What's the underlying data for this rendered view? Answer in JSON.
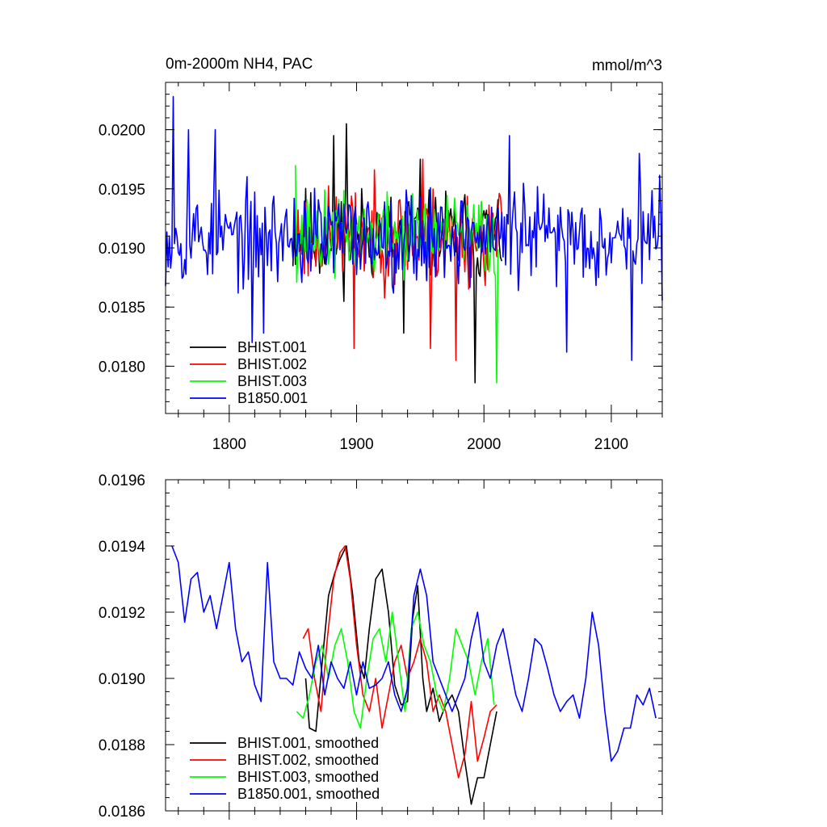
{
  "chart_data": [
    {
      "type": "line",
      "title_left": "0m-2000m NH4, PAC",
      "title_right": "mmol/m^3",
      "xlim": [
        1750,
        2140
      ],
      "ylim": [
        0.0176,
        0.0204
      ],
      "x_ticks": [
        1800,
        1900,
        2000,
        2100
      ],
      "x_tick_labels": [
        "1800",
        "1900",
        "2000",
        "2100"
      ],
      "y_ticks": [
        0.018,
        0.0185,
        0.019,
        0.0195,
        0.02
      ],
      "y_tick_labels": [
        "0.0180",
        "0.0185",
        "0.0190",
        "0.0195",
        "0.0200"
      ],
      "legend_position": "bottom-left",
      "series": [
        {
          "name": "BHIST.001",
          "color": "#000000",
          "x_start": 1850,
          "x_end": 2014,
          "mean": 0.0191,
          "amp": 0.00035,
          "seed": 11,
          "peaks": [
            [
              1882,
              0.01995
            ],
            [
              1892,
              0.02005
            ],
            [
              1950,
              0.01975
            ],
            [
              1993,
              0.01786
            ],
            [
              1937,
              0.01828
            ]
          ]
        },
        {
          "name": "BHIST.002",
          "color": "#ff0000",
          "x_start": 1853,
          "x_end": 2014,
          "mean": 0.0191,
          "amp": 0.00035,
          "seed": 23,
          "peaks": [
            [
              1952,
              0.01975
            ],
            [
              1898,
              0.01815
            ],
            [
              1978,
              0.01805
            ],
            [
              1958,
              0.01815
            ]
          ]
        },
        {
          "name": "BHIST.003",
          "color": "#00ff00",
          "x_start": 1852,
          "x_end": 2011,
          "mean": 0.0191,
          "amp": 0.0003,
          "seed": 37,
          "peaks": [
            [
              2010,
              0.01786
            ],
            [
              1852,
              0.0197
            ]
          ]
        },
        {
          "name": "B1850.001",
          "color": "#0000ff",
          "x_start": 1750,
          "x_end": 2140,
          "mean": 0.0191,
          "amp": 0.00035,
          "seed": 53,
          "peaks": [
            [
              1756,
              0.02028
            ],
            [
              1768,
              0.02
            ],
            [
              1789,
              0.02
            ],
            [
              1818,
              0.0182
            ],
            [
              1827,
              0.01828
            ],
            [
              2020,
              0.01995
            ],
            [
              2065,
              0.01812
            ],
            [
              2122,
              0.0198
            ],
            [
              2116,
              0.01805
            ]
          ]
        }
      ]
    },
    {
      "type": "line",
      "xlim": [
        1750,
        2140
      ],
      "ylim": [
        0.0186,
        0.0196
      ],
      "y_ticks": [
        0.0186,
        0.0188,
        0.019,
        0.0192,
        0.0194,
        0.0196
      ],
      "y_tick_labels": [
        "0.0186",
        "0.0188",
        "0.0190",
        "0.0192",
        "0.0194",
        "0.0196"
      ],
      "legend_position": "bottom-left",
      "series": [
        {
          "name": "BHIST.001, smoothed",
          "color": "#000000",
          "x": [
            1860,
            1863,
            1868,
            1873,
            1878,
            1883,
            1887,
            1892,
            1897,
            1902,
            1906,
            1910,
            1915,
            1920,
            1925,
            1930,
            1935,
            1940,
            1944,
            1948,
            1952,
            1955,
            1960,
            1965,
            1970,
            1975,
            1980,
            1985,
            1990,
            1995,
            2000,
            2005,
            2010
          ],
          "y": [
            0.019,
            0.01885,
            0.01884,
            0.01905,
            0.01925,
            0.01932,
            0.01936,
            0.0194,
            0.01925,
            0.01905,
            0.019,
            0.01915,
            0.0193,
            0.01933,
            0.0192,
            0.01898,
            0.01892,
            0.01893,
            0.01918,
            0.01928,
            0.019,
            0.0189,
            0.01897,
            0.01887,
            0.01892,
            0.01895,
            0.0189,
            0.01875,
            0.01862,
            0.0187,
            0.0187,
            0.0188,
            0.0189
          ]
        },
        {
          "name": "BHIST.002, smoothed",
          "color": "#ff0000",
          "x": [
            1858,
            1862,
            1867,
            1872,
            1877,
            1882,
            1887,
            1891,
            1895,
            1900,
            1905,
            1910,
            1915,
            1920,
            1925,
            1930,
            1935,
            1940,
            1945,
            1950,
            1955,
            1960,
            1965,
            1970,
            1975,
            1980,
            1985,
            1990,
            1995,
            2000,
            2005,
            2010
          ],
          "y": [
            0.01912,
            0.01915,
            0.019,
            0.0189,
            0.01912,
            0.0193,
            0.01938,
            0.0194,
            0.0193,
            0.0191,
            0.01895,
            0.0189,
            0.019,
            0.01885,
            0.01895,
            0.01905,
            0.0191,
            0.019,
            0.01905,
            0.01912,
            0.01905,
            0.0189,
            0.01895,
            0.0189,
            0.0188,
            0.0187,
            0.01877,
            0.01893,
            0.01875,
            0.01882,
            0.0189,
            0.01892
          ]
        },
        {
          "name": "BHIST.003, smoothed",
          "color": "#00ff00",
          "x": [
            1853,
            1858,
            1863,
            1868,
            1873,
            1878,
            1883,
            1888,
            1893,
            1898,
            1903,
            1908,
            1913,
            1918,
            1923,
            1928,
            1933,
            1938,
            1943,
            1948,
            1953,
            1958,
            1963,
            1968,
            1973,
            1978,
            1983,
            1988,
            1993,
            1998,
            2003,
            2008
          ],
          "y": [
            0.0189,
            0.01888,
            0.01895,
            0.01905,
            0.0191,
            0.019,
            0.0191,
            0.01915,
            0.01905,
            0.0189,
            0.01885,
            0.019,
            0.01912,
            0.01915,
            0.01905,
            0.0192,
            0.01905,
            0.0189,
            0.01915,
            0.0192,
            0.0191,
            0.01905,
            0.01895,
            0.0189,
            0.019,
            0.01915,
            0.0191,
            0.01905,
            0.01895,
            0.01905,
            0.01912,
            0.01892
          ]
        },
        {
          "name": "B1850.001, smoothed",
          "color": "#0000ff",
          "x": [
            1755,
            1760,
            1765,
            1770,
            1775,
            1780,
            1785,
            1790,
            1795,
            1800,
            1805,
            1810,
            1815,
            1820,
            1825,
            1830,
            1835,
            1840,
            1845,
            1850,
            1855,
            1860,
            1865,
            1870,
            1875,
            1880,
            1885,
            1890,
            1895,
            1900,
            1905,
            1910,
            1915,
            1920,
            1925,
            1930,
            1935,
            1940,
            1945,
            1950,
            1955,
            1960,
            1965,
            1970,
            1975,
            1980,
            1985,
            1990,
            1995,
            2000,
            2005,
            2010,
            2015,
            2020,
            2025,
            2030,
            2035,
            2040,
            2045,
            2050,
            2055,
            2060,
            2065,
            2070,
            2075,
            2080,
            2085,
            2090,
            2095,
            2100,
            2105,
            2110,
            2115,
            2120,
            2125,
            2130,
            2135
          ],
          "y": [
            0.0194,
            0.01935,
            0.01917,
            0.0193,
            0.01932,
            0.0192,
            0.01925,
            0.01915,
            0.01925,
            0.01935,
            0.01915,
            0.01905,
            0.01908,
            0.01898,
            0.01893,
            0.01935,
            0.01905,
            0.019,
            0.019,
            0.01898,
            0.01908,
            0.01903,
            0.019,
            0.0191,
            0.01895,
            0.01905,
            0.019,
            0.01897,
            0.01905,
            0.01895,
            0.01905,
            0.01897,
            0.01898,
            0.019,
            0.01905,
            0.01895,
            0.0189,
            0.01897,
            0.01925,
            0.01933,
            0.01925,
            0.01905,
            0.019,
            0.01895,
            0.0189,
            0.01895,
            0.019,
            0.01912,
            0.0192,
            0.01905,
            0.019,
            0.0191,
            0.01915,
            0.01905,
            0.01895,
            0.0189,
            0.019,
            0.01912,
            0.0191,
            0.01903,
            0.01895,
            0.0189,
            0.01893,
            0.01895,
            0.01888,
            0.019,
            0.0192,
            0.0191,
            0.0189,
            0.01875,
            0.01878,
            0.01885,
            0.01885,
            0.01895,
            0.01892,
            0.01897,
            0.01888
          ]
        }
      ]
    }
  ]
}
